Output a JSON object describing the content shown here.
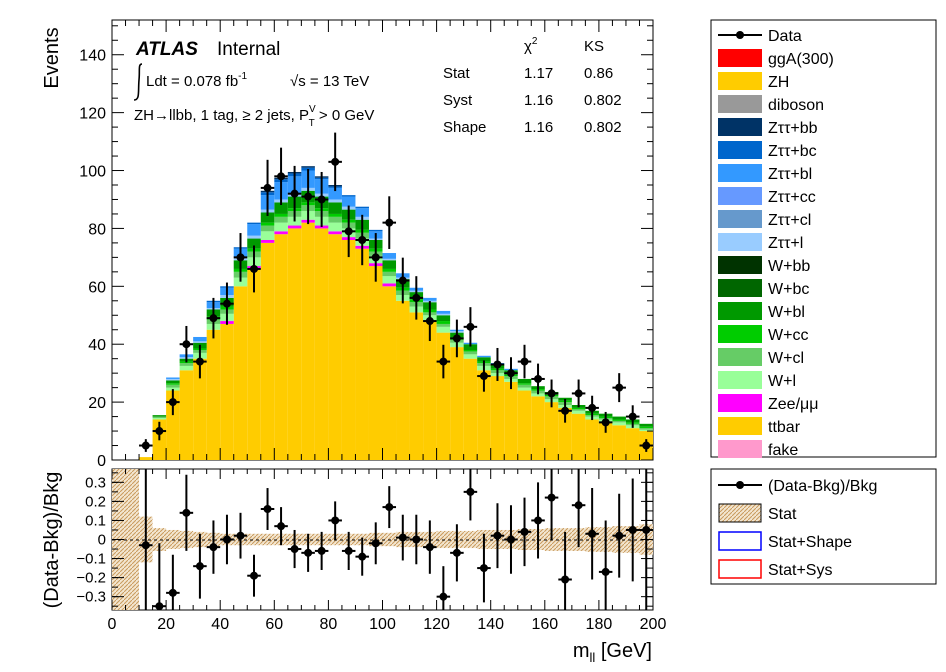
{
  "chart_data": [
    {
      "type": "histogram-stack",
      "panel": "main",
      "ylabel": "Events",
      "xlim": [
        0,
        200
      ],
      "ylim": [
        0,
        152
      ],
      "yticks": [
        0,
        20,
        40,
        60,
        80,
        100,
        120,
        140
      ],
      "bin_edges": [
        0,
        5,
        10,
        15,
        20,
        25,
        30,
        35,
        40,
        45,
        50,
        55,
        60,
        65,
        70,
        75,
        80,
        85,
        90,
        95,
        100,
        105,
        110,
        115,
        120,
        125,
        130,
        135,
        140,
        145,
        150,
        155,
        160,
        165,
        170,
        175,
        180,
        185,
        190,
        195,
        200
      ],
      "series": [
        {
          "name": "ttbar",
          "color": "#ffcc00",
          "values": [
            0,
            0,
            1,
            14,
            24,
            31,
            35,
            45,
            47,
            60,
            66,
            75,
            78,
            80,
            82,
            80,
            78,
            76,
            73,
            67,
            60,
            55,
            51,
            48,
            44,
            39,
            35,
            31,
            29,
            27,
            24,
            22,
            20,
            18,
            16,
            14,
            13,
            12,
            11,
            10
          ]
        },
        {
          "name": "Zee/μμ",
          "color": "#ff00ff",
          "values": [
            0,
            0,
            0,
            0,
            0,
            0,
            0,
            0,
            1,
            0,
            1,
            1,
            1,
            1,
            1,
            1,
            1,
            1,
            1,
            1,
            1,
            0,
            0,
            0,
            0,
            0,
            0,
            0,
            0,
            0,
            0,
            0,
            0,
            0,
            0,
            0,
            0,
            0,
            0,
            0
          ]
        },
        {
          "name": "W+l",
          "color": "#99ff99",
          "values": [
            0,
            0,
            0,
            0.5,
            1,
            1.5,
            2,
            2,
            2.5,
            3,
            3,
            3,
            3,
            3,
            3,
            3,
            3,
            3,
            2.5,
            2.5,
            2.5,
            2,
            2,
            2,
            2,
            1.5,
            1.5,
            1.5,
            1,
            1,
            1,
            1,
            1,
            1,
            1,
            1,
            1,
            1,
            1,
            0.5
          ]
        },
        {
          "name": "W+cl",
          "color": "#66cc66",
          "values": [
            0,
            0,
            0,
            0.5,
            1,
            1,
            1,
            1.5,
            1.5,
            2,
            2,
            2,
            2,
            2,
            2,
            2,
            2,
            2,
            2,
            1.5,
            1.5,
            1.5,
            1.5,
            1,
            1,
            1,
            1,
            1,
            1,
            1,
            1,
            1,
            1,
            1,
            0.5,
            0.5,
            0.5,
            0.5,
            0.5,
            0.5
          ]
        },
        {
          "name": "W+cc",
          "color": "#00cc00",
          "values": [
            0,
            0,
            0,
            0,
            0.5,
            0.5,
            0.5,
            1,
            1,
            1,
            1,
            1,
            1,
            1,
            1,
            1,
            1,
            1,
            1,
            1,
            1,
            1,
            1,
            1,
            1,
            0.5,
            0.5,
            0.5,
            0.5,
            0.5,
            0.5,
            0.5,
            0.5,
            0.5,
            0.5,
            0.5,
            0.5,
            0.5,
            0.5,
            0.5
          ]
        },
        {
          "name": "W+bl",
          "color": "#009900",
          "values": [
            0,
            0,
            0,
            0.5,
            1,
            1,
            2,
            2.5,
            3,
            3,
            3.5,
            3.5,
            4,
            4,
            4,
            4,
            4,
            3.5,
            3.5,
            3,
            3,
            3,
            2.5,
            2.5,
            2,
            2,
            2,
            1.5,
            1.5,
            1.5,
            1.5,
            1,
            1,
            1,
            1,
            1,
            1,
            1,
            1,
            1
          ]
        },
        {
          "name": "Zττ+l",
          "color": "#99ccff",
          "values": [
            0,
            0,
            0,
            0,
            0.5,
            0.5,
            0.5,
            0.5,
            1,
            1,
            1,
            1,
            1,
            1,
            1,
            1,
            1,
            1,
            1,
            0.5,
            0.5,
            0.5,
            0.5,
            0.5,
            0.5,
            0.5,
            0,
            0,
            0,
            0,
            0,
            0,
            0,
            0,
            0,
            0,
            0,
            0,
            0,
            0
          ]
        },
        {
          "name": "Zττ+bl",
          "color": "#3399ff",
          "values": [
            0,
            0,
            0,
            0,
            0.5,
            1,
            1.5,
            2,
            2.5,
            3,
            4,
            5,
            6,
            6,
            6,
            5,
            4,
            3.5,
            3,
            2.5,
            2,
            1.5,
            1,
            1,
            1,
            0.5,
            0.5,
            0.5,
            0.5,
            0.5,
            0,
            0,
            0,
            0,
            0,
            0,
            0,
            0,
            0,
            0
          ]
        },
        {
          "name": "Zττ+bc",
          "color": "#0066cc",
          "values": [
            0,
            0,
            0,
            0,
            0,
            0,
            0,
            0.5,
            0.5,
            0.5,
            0.5,
            1,
            1,
            1,
            1,
            0.5,
            0.5,
            0.5,
            0.5,
            0.5,
            0,
            0,
            0,
            0,
            0,
            0,
            0,
            0,
            0,
            0,
            0,
            0,
            0,
            0,
            0,
            0,
            0,
            0,
            0,
            0
          ]
        },
        {
          "name": "Zττ+bb",
          "color": "#003366",
          "values": [
            0,
            0,
            0,
            0,
            0,
            0,
            0,
            0,
            0,
            0,
            0,
            0.5,
            0.5,
            0.5,
            0.5,
            0.5,
            0.5,
            0,
            0,
            0,
            0,
            0,
            0,
            0,
            0,
            0,
            0,
            0,
            0,
            0,
            0,
            0,
            0,
            0,
            0,
            0,
            0,
            0,
            0,
            0
          ]
        }
      ],
      "data": {
        "name": "Data",
        "x": [
          12.5,
          17.5,
          22.5,
          27.5,
          32.5,
          37.5,
          42.5,
          47.5,
          52.5,
          57.5,
          62.5,
          67.5,
          72.5,
          77.5,
          82.5,
          87.5,
          92.5,
          97.5,
          102.5,
          107.5,
          112.5,
          117.5,
          122.5,
          127.5,
          132.5,
          137.5,
          142.5,
          147.5,
          152.5,
          157.5,
          162.5,
          167.5,
          172.5,
          177.5,
          182.5,
          187.5,
          192.5,
          197.5
        ],
        "y": [
          5,
          10,
          20,
          40,
          34,
          49,
          54,
          70,
          66,
          94,
          98,
          92,
          91,
          90,
          103,
          79,
          76,
          70,
          82,
          62,
          56,
          48,
          34,
          42,
          46,
          29,
          33,
          30,
          34,
          28,
          23,
          17,
          23,
          18,
          13,
          25,
          15,
          5
        ],
        "yerr": [
          2.2,
          3.2,
          4.5,
          6.3,
          5.8,
          7.0,
          7.3,
          8.4,
          8.1,
          9.7,
          9.9,
          9.6,
          9.5,
          9.5,
          10.1,
          8.9,
          8.7,
          8.4,
          9.1,
          7.9,
          7.5,
          6.9,
          5.8,
          6.5,
          6.8,
          5.4,
          5.7,
          5.5,
          5.8,
          5.3,
          4.8,
          4.1,
          4.8,
          4.2,
          3.6,
          5.0,
          3.9,
          2.2
        ]
      },
      "legend": [
        "Data",
        "ggA(300)",
        "ZH",
        "diboson",
        "Zττ+bb",
        "Zττ+bc",
        "Zττ+bl",
        "Zττ+cc",
        "Zττ+cl",
        "Zττ+l",
        "W+bb",
        "W+bc",
        "W+bl",
        "W+cc",
        "W+cl",
        "W+l",
        "Zee/μμ",
        "ttbar",
        "fake"
      ],
      "legend_colors": [
        "#000000",
        "#ff0000",
        "#ffcc00",
        "#999999",
        "#003366",
        "#0066cc",
        "#3399ff",
        "#6699ff",
        "#6699cc",
        "#99ccff",
        "#003300",
        "#006600",
        "#009900",
        "#00cc00",
        "#66cc66",
        "#99ff99",
        "#ff00ff",
        "#ffcc00",
        "#ff99cc"
      ]
    },
    {
      "type": "ratio",
      "panel": "ratio",
      "ylabel": "(Data-Bkg)/Bkg",
      "xlabel": "m_ll [GeV]",
      "xlim": [
        0,
        200
      ],
      "ylim": [
        -0.37,
        0.37
      ],
      "yticks": [
        -0.3,
        -0.2,
        -0.1,
        0,
        0.1,
        0.2,
        0.3
      ],
      "xticks": [
        0,
        20,
        40,
        60,
        80,
        100,
        120,
        140,
        160,
        180,
        200
      ],
      "points": {
        "x": [
          12.5,
          17.5,
          22.5,
          27.5,
          32.5,
          37.5,
          42.5,
          47.5,
          52.5,
          57.5,
          62.5,
          67.5,
          72.5,
          77.5,
          82.5,
          87.5,
          92.5,
          97.5,
          102.5,
          107.5,
          112.5,
          117.5,
          122.5,
          127.5,
          132.5,
          137.5,
          142.5,
          147.5,
          152.5,
          157.5,
          162.5,
          167.5,
          172.5,
          177.5,
          182.5,
          187.5,
          192.5,
          197.5
        ],
        "y": [
          -0.03,
          -0.35,
          -0.28,
          0.14,
          -0.14,
          -0.04,
          0.0,
          0.02,
          -0.19,
          0.16,
          0.07,
          -0.05,
          -0.07,
          -0.06,
          0.1,
          -0.06,
          -0.09,
          -0.02,
          0.17,
          0.01,
          0.0,
          -0.04,
          -0.3,
          -0.07,
          0.25,
          -0.15,
          0.02,
          0.0,
          0.04,
          0.1,
          0.22,
          -0.21,
          0.18,
          0.03,
          -0.17,
          0.02,
          0.05,
          0.05
        ],
        "yerr": [
          0.45,
          0.33,
          0.2,
          0.2,
          0.17,
          0.14,
          0.13,
          0.12,
          0.11,
          0.11,
          0.1,
          0.1,
          0.1,
          0.1,
          0.1,
          0.1,
          0.1,
          0.11,
          0.11,
          0.12,
          0.13,
          0.14,
          0.16,
          0.15,
          0.15,
          0.18,
          0.17,
          0.18,
          0.18,
          0.2,
          0.22,
          0.25,
          0.22,
          0.24,
          0.27,
          0.22,
          0.27,
          0.45
        ]
      },
      "stat_band": [
        0.9,
        0.9,
        0.12,
        0.06,
        0.05,
        0.045,
        0.04,
        0.035,
        0.03,
        0.03,
        0.03,
        0.03,
        0.03,
        0.03,
        0.03,
        0.03,
        0.03,
        0.03,
        0.03,
        0.035,
        0.035,
        0.04,
        0.04,
        0.04,
        0.045,
        0.045,
        0.045,
        0.05,
        0.05,
        0.05,
        0.055,
        0.055,
        0.06,
        0.06,
        0.06,
        0.065,
        0.065,
        0.07,
        0.07,
        0.08
      ],
      "legend": [
        "(Data-Bkg)/Bkg",
        "Stat",
        "Stat+Shape",
        "Stat+Sys"
      ]
    }
  ],
  "annotations": {
    "atlas": "ATLAS",
    "internal": "Internal",
    "lumi_pre": "Ldt = 0.078 fb",
    "lumi_exp": "-1",
    "sqrts": "√s = 13 TeV",
    "region": "ZH→llbb, 1 tag, ≥ 2 jets,  P",
    "region_sup": "V",
    "region_sub": "T",
    "region_post": " > 0 GeV",
    "stats_header_chi2": "χ",
    "stats_header_chi2_sup": "2",
    "stats_header_ks": "KS",
    "stats_rows": [
      {
        "label": "Stat",
        "chi2": "1.17",
        "ks": "0.86"
      },
      {
        "label": "Syst",
        "chi2": "1.16",
        "ks": "0.802"
      },
      {
        "label": "Shape",
        "chi2": "1.16",
        "ks": "0.802"
      }
    ],
    "xlabel_main": "m",
    "xlabel_sub": "ll",
    "xlabel_unit": " [GeV]"
  }
}
